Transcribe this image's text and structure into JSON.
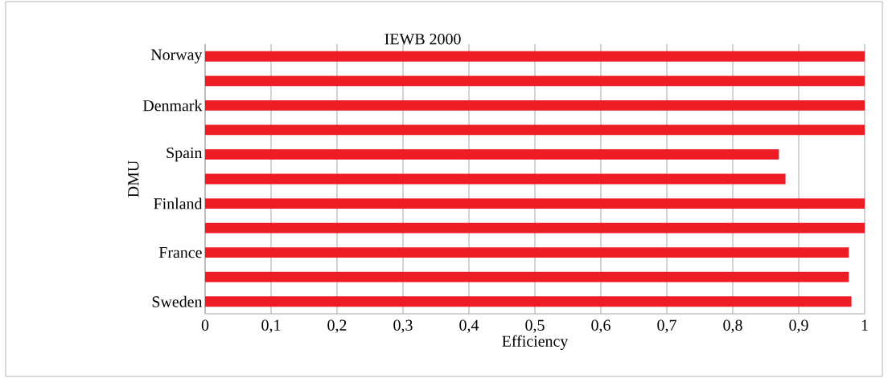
{
  "chart_data": {
    "type": "bar",
    "orientation": "horizontal",
    "title": "IEWB 2000",
    "xlabel": "Efficiency",
    "ylabel": "DMU",
    "categories": [
      "Norway",
      null,
      "Denmark",
      null,
      "Spain",
      null,
      "Finland",
      null,
      "France",
      null,
      "Sweden"
    ],
    "values": [
      1,
      1,
      1,
      1,
      0.87,
      0.88,
      1,
      1,
      0.976,
      0.976,
      0.98
    ],
    "color": "#ee1c25",
    "xlim": [
      0,
      1
    ],
    "xticks": [
      0,
      {
        "value": 0.1,
        "label": "0,1"
      },
      {
        "value": 0.2,
        "label": "0,2"
      },
      {
        "value": 0.3,
        "label": "0,3"
      },
      {
        "value": 0.4,
        "label": "0,4"
      },
      {
        "value": 0.5,
        "label": "0,5"
      },
      {
        "value": 0.6,
        "label": "0,6"
      },
      {
        "value": 0.7,
        "label": "0,7"
      },
      {
        "value": 0.8,
        "label": "0,8"
      },
      {
        "value": 0.9,
        "label": "0,9"
      },
      1
    ],
    "grid": "x"
  }
}
